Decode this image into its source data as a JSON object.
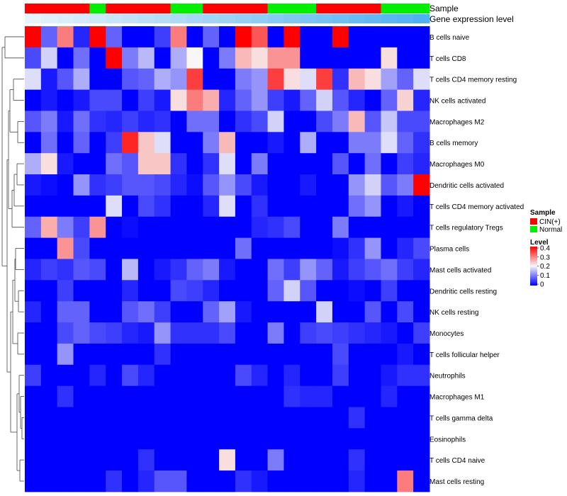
{
  "chart_data": {
    "type": "heatmap",
    "title": "",
    "annotation_tracks": [
      {
        "name": "Sample",
        "values": [
          "CIN(+)",
          "CIN(+)",
          "CIN(+)",
          "CIN(+)",
          "Normal",
          "CIN(+)",
          "CIN(+)",
          "CIN(+)",
          "CIN(+)",
          "Normal",
          "Normal",
          "CIN(+)",
          "CIN(+)",
          "CIN(+)",
          "CIN(+)",
          "Normal",
          "Normal",
          "Normal",
          "CIN(+)",
          "CIN(+)",
          "CIN(+)",
          "CIN(+)",
          "Normal",
          "Normal",
          "Normal"
        ]
      },
      {
        "name": "Gene expression level",
        "values": [
          0.0,
          0.042,
          0.083,
          0.125,
          0.167,
          0.208,
          0.25,
          0.292,
          0.333,
          0.375,
          0.417,
          0.458,
          0.5,
          0.542,
          0.583,
          0.625,
          0.667,
          0.708,
          0.75,
          0.792,
          0.833,
          0.875,
          0.917,
          0.958,
          1.0
        ]
      }
    ],
    "rows": [
      "B cells naive",
      "T cells CD8",
      "T cells CD4 memory resting",
      "NK cells activated",
      "Macrophages M2",
      "B cells memory",
      "Macrophages M0",
      "Dendritic cells activated",
      "T cells CD4 memory activated",
      "T cells regulatory  Tregs",
      "Plasma cells",
      "Mast cells activated",
      "Dendritic cells resting",
      "NK cells resting",
      "Monocytes",
      "T cells follicular helper",
      "Neutrophils",
      "Macrophages M1",
      "T cells gamma delta",
      "Eosinophils",
      "T cells CD4 naive",
      "Mast cells resting"
    ],
    "columns": 25,
    "values": [
      [
        0.4,
        0.08,
        0.3,
        0.03,
        0.4,
        0.08,
        0.0,
        0.0,
        0.05,
        0.3,
        0.0,
        0.08,
        0.0,
        0.4,
        0.33,
        0.0,
        0.4,
        0.0,
        0.0,
        0.4,
        0.0,
        0.0,
        0.0,
        0.0,
        0.0
      ],
      [
        0.06,
        0.17,
        0.0,
        0.09,
        0.0,
        0.4,
        0.1,
        0.15,
        0.0,
        0.14,
        0.2,
        0.0,
        0.1,
        0.25,
        0.22,
        0.28,
        0.28,
        0.0,
        0.0,
        0.0,
        0.0,
        0.0,
        0.22,
        0.0,
        0.0
      ],
      [
        0.18,
        0.02,
        0.07,
        0.14,
        0.0,
        0.0,
        0.07,
        0.08,
        0.14,
        0.12,
        0.35,
        0.0,
        0.0,
        0.1,
        0.12,
        0.35,
        0.22,
        0.18,
        0.35,
        0.04,
        0.25,
        0.22,
        0.13,
        0.08,
        0.18
      ],
      [
        0.0,
        0.02,
        0.0,
        0.02,
        0.06,
        0.06,
        0.0,
        0.05,
        0.02,
        0.22,
        0.3,
        0.26,
        0.03,
        0.08,
        0.12,
        0.05,
        0.02,
        0.08,
        0.17,
        0.07,
        0.03,
        0.0,
        0.08,
        0.23,
        0.03
      ],
      [
        0.07,
        0.1,
        0.02,
        0.09,
        0.04,
        0.03,
        0.05,
        0.03,
        0.04,
        0.0,
        0.09,
        0.09,
        0.0,
        0.04,
        0.06,
        0.17,
        0.0,
        0.0,
        0.06,
        0.1,
        0.25,
        0.07,
        0.16,
        0.06,
        0.06
      ],
      [
        0.0,
        0.09,
        0.0,
        0.08,
        0.0,
        0.05,
        0.37,
        0.24,
        0.18,
        0.0,
        0.0,
        0.1,
        0.25,
        0.0,
        0.0,
        0.02,
        0.0,
        0.14,
        0.0,
        0.0,
        0.1,
        0.1,
        0.18,
        0.08,
        0.04
      ],
      [
        0.14,
        0.22,
        0.02,
        0.0,
        0.0,
        0.09,
        0.07,
        0.24,
        0.24,
        0.04,
        0.0,
        0.04,
        0.18,
        0.0,
        0.1,
        0.0,
        0.0,
        0.0,
        0.0,
        0.07,
        0.0,
        0.09,
        0.0,
        0.05,
        0.03
      ],
      [
        0.02,
        0.01,
        0.0,
        0.12,
        0.04,
        0.05,
        0.07,
        0.07,
        0.06,
        0.03,
        0.01,
        0.07,
        0.12,
        0.06,
        0.02,
        0.0,
        0.0,
        0.02,
        0.0,
        0.0,
        0.12,
        0.17,
        0.07,
        0.1,
        0.4
      ],
      [
        0.0,
        0.0,
        0.0,
        0.0,
        0.0,
        0.18,
        0.0,
        0.06,
        0.04,
        0.0,
        0.0,
        0.03,
        0.18,
        0.0,
        0.04,
        0.0,
        0.0,
        0.0,
        0.0,
        0.0,
        0.09,
        0.12,
        0.0,
        0.02,
        0.0
      ],
      [
        0.08,
        0.26,
        0.1,
        0.05,
        0.28,
        0.0,
        0.01,
        0.0,
        0.0,
        0.0,
        0.0,
        0.0,
        0.0,
        0.0,
        0.03,
        0.04,
        0.06,
        0.0,
        0.0,
        0.1,
        0.0,
        0.0,
        0.0,
        0.0,
        0.0
      ],
      [
        0.0,
        0.0,
        0.28,
        0.06,
        0.0,
        0.0,
        0.0,
        0.0,
        0.0,
        0.0,
        0.0,
        0.0,
        0.0,
        0.09,
        0.0,
        0.0,
        0.0,
        0.0,
        0.0,
        0.01,
        0.04,
        0.12,
        0.0,
        0.03,
        0.06
      ],
      [
        0.03,
        0.05,
        0.04,
        0.07,
        0.06,
        0.0,
        0.15,
        0.0,
        0.02,
        0.04,
        0.08,
        0.1,
        0.02,
        0.0,
        0.0,
        0.09,
        0.05,
        0.12,
        0.08,
        0.02,
        0.05,
        0.07,
        0.09,
        0.05,
        0.03
      ],
      [
        0.0,
        0.0,
        0.05,
        0.0,
        0.0,
        0.0,
        0.03,
        0.0,
        0.0,
        0.06,
        0.05,
        0.03,
        0.0,
        0.0,
        0.0,
        0.08,
        0.17,
        0.07,
        0.0,
        0.0,
        0.01,
        0.0,
        0.05,
        0.0,
        0.0
      ],
      [
        0.03,
        0.0,
        0.08,
        0.08,
        0.0,
        0.0,
        0.07,
        0.09,
        0.05,
        0.0,
        0.0,
        0.08,
        0.13,
        0.02,
        0.0,
        0.0,
        0.0,
        0.0,
        0.17,
        0.0,
        0.0,
        0.07,
        0.0,
        0.06,
        0.0
      ],
      [
        0.0,
        0.0,
        0.06,
        0.08,
        0.06,
        0.05,
        0.03,
        0.02,
        0.12,
        0.04,
        0.04,
        0.04,
        0.06,
        0.0,
        0.0,
        0.1,
        0.0,
        0.05,
        0.06,
        0.05,
        0.04,
        0.03,
        0.02,
        0.0,
        0.05
      ],
      [
        0.0,
        0.0,
        0.12,
        0.0,
        0.0,
        0.0,
        0.0,
        0.0,
        0.04,
        0.0,
        0.0,
        0.0,
        0.0,
        0.0,
        0.0,
        0.0,
        0.0,
        0.0,
        0.0,
        0.06,
        0.0,
        0.0,
        0.0,
        0.02,
        0.0
      ],
      [
        0.05,
        0.0,
        0.0,
        0.0,
        0.03,
        0.0,
        0.06,
        0.03,
        0.0,
        0.0,
        0.0,
        0.0,
        0.0,
        0.06,
        0.03,
        0.0,
        0.03,
        0.0,
        0.0,
        0.05,
        0.0,
        0.0,
        0.02,
        0.04,
        0.04
      ],
      [
        0.0,
        0.0,
        0.04,
        0.0,
        0.0,
        0.0,
        0.0,
        0.0,
        0.0,
        0.0,
        0.0,
        0.0,
        0.0,
        0.0,
        0.0,
        0.0,
        0.04,
        0.03,
        0.03,
        0.0,
        0.0,
        0.0,
        0.03,
        0.0,
        0.0
      ],
      [
        0.0,
        0.0,
        0.0,
        0.0,
        0.0,
        0.0,
        0.0,
        0.0,
        0.0,
        0.0,
        0.0,
        0.0,
        0.0,
        0.0,
        0.0,
        0.0,
        0.0,
        0.0,
        0.0,
        0.0,
        0.04,
        0.0,
        0.0,
        0.0,
        0.0
      ],
      [
        0.0,
        0.0,
        0.0,
        0.0,
        0.0,
        0.0,
        0.0,
        0.0,
        0.0,
        0.0,
        0.0,
        0.0,
        0.0,
        0.0,
        0.0,
        0.0,
        0.0,
        0.0,
        0.0,
        0.0,
        0.0,
        0.0,
        0.0,
        0.0,
        0.0
      ],
      [
        0.0,
        0.0,
        0.0,
        0.0,
        0.0,
        0.0,
        0.0,
        0.04,
        0.0,
        0.0,
        0.0,
        0.0,
        0.22,
        0.0,
        0.0,
        0.1,
        0.0,
        0.0,
        0.0,
        0.0,
        0.04,
        0.0,
        0.0,
        0.0,
        0.0
      ],
      [
        0.0,
        0.0,
        0.0,
        0.0,
        0.0,
        0.04,
        0.0,
        0.03,
        0.07,
        0.07,
        0.0,
        0.0,
        0.0,
        0.04,
        0.02,
        0.0,
        0.0,
        0.0,
        0.0,
        0.0,
        0.03,
        0.0,
        0.0,
        0.3,
        0.0
      ]
    ],
    "legend": {
      "sample": {
        "title": "Sample",
        "entries": [
          {
            "label": "CIN(+)",
            "color": "#ff0000"
          },
          {
            "label": "Normal",
            "color": "#00ee00"
          }
        ]
      },
      "level": {
        "title": "Level",
        "min": 0,
        "max": 0.4,
        "ticks": [
          "0.4",
          "0.3",
          "0.2",
          "0.1",
          "0"
        ]
      }
    },
    "colors": {
      "low": "#0000ff",
      "mid": "#f7f7f7",
      "high": "#ff0000",
      "track_low": "#e6f3fb",
      "track_high": "#4fb1f1",
      "CIN(+)": "#ff0000",
      "Normal": "#00ee00"
    }
  }
}
